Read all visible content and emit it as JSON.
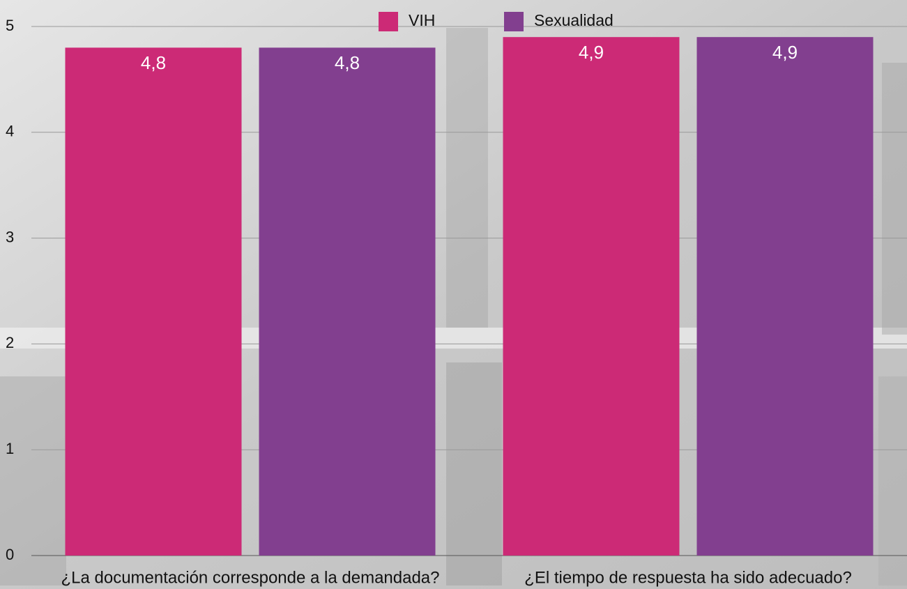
{
  "chart_data": {
    "type": "bar",
    "categories": [
      "¿La documentación corresponde a la demandada?",
      "¿El tiempo de respuesta ha sido adecuado?"
    ],
    "series": [
      {
        "name": "VIH",
        "color": "#cc2a76",
        "values": [
          4.8,
          4.9
        ],
        "value_labels": [
          "4,8",
          "4,9"
        ]
      },
      {
        "name": "Sexualidad",
        "color": "#823f8f",
        "values": [
          4.8,
          4.9
        ],
        "value_labels": [
          "4,8",
          "4,9"
        ]
      }
    ],
    "ylim": [
      0,
      5
    ],
    "yticks": [
      0,
      1,
      2,
      3,
      4,
      5
    ],
    "grid": true,
    "legend": "top"
  }
}
